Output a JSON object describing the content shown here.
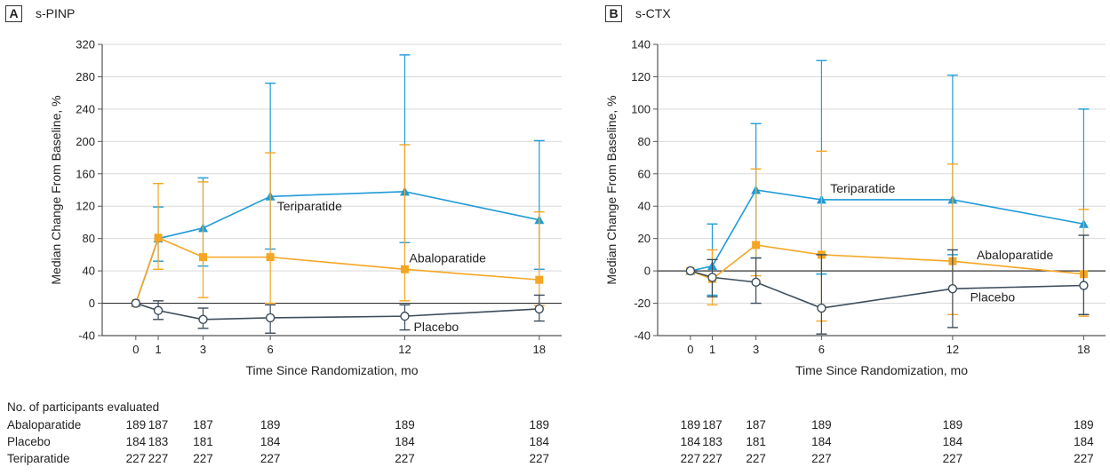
{
  "colors": {
    "abaloparatide": "#f5a623",
    "teriparatide": "#1f9bd7",
    "placebo": "#3d4d5c",
    "axis": "#555555",
    "grid": "#d9d9d9"
  },
  "chart_data": [
    {
      "type": "line",
      "panel_letter": "A",
      "title": "s-PINP",
      "xlabel": "Time Since Randomization, mo",
      "ylabel": "Median Change From Baseline, %",
      "xlim": [
        -1.5,
        19
      ],
      "ylim": [
        -40,
        320
      ],
      "x_ticks": [
        0,
        1,
        3,
        6,
        12,
        18
      ],
      "y_ticks": [
        -40,
        0,
        40,
        80,
        120,
        160,
        200,
        240,
        280,
        320
      ],
      "grid": true,
      "series": [
        {
          "name": "Teriparatide",
          "key": "teriparatide",
          "marker": "triangle",
          "x": [
            0,
            1,
            3,
            6,
            12,
            18
          ],
          "values": [
            0,
            80,
            93,
            132,
            138,
            103
          ],
          "err_low": [
            0,
            52,
            46,
            67,
            75,
            42
          ],
          "err_high": [
            0,
            119,
            155,
            272,
            307,
            201
          ],
          "label_at": [
            6.3,
            120
          ]
        },
        {
          "name": "Abaloparatide",
          "key": "abaloparatide",
          "marker": "square",
          "x": [
            0,
            1,
            3,
            6,
            12,
            18
          ],
          "values": [
            0,
            81,
            57,
            57,
            42,
            29
          ],
          "err_low": [
            0,
            42,
            7,
            0,
            3,
            -3
          ],
          "err_high": [
            0,
            148,
            150,
            186,
            196,
            113
          ],
          "label_at": [
            12.2,
            56
          ]
        },
        {
          "name": "Placebo",
          "key": "placebo",
          "marker": "circle",
          "x": [
            0,
            1,
            3,
            6,
            12,
            18
          ],
          "values": [
            0,
            -9,
            -20,
            -18,
            -16,
            -7
          ],
          "err_low": [
            0,
            -20,
            -31,
            -37,
            -33,
            -22
          ],
          "err_high": [
            0,
            3,
            -6,
            -2,
            -2,
            10
          ],
          "label_at": [
            12.4,
            -29
          ]
        }
      ]
    },
    {
      "type": "line",
      "panel_letter": "B",
      "title": "s-CTX",
      "xlabel": "Time Since Randomization, mo",
      "ylabel": "Median Change From Baseline, %",
      "xlim": [
        -1.5,
        19
      ],
      "ylim": [
        -40,
        140
      ],
      "x_ticks": [
        0,
        1,
        3,
        6,
        12,
        18
      ],
      "y_ticks": [
        -40,
        -20,
        0,
        20,
        40,
        60,
        80,
        100,
        120,
        140
      ],
      "grid": true,
      "series": [
        {
          "name": "Teriparatide",
          "key": "teriparatide",
          "marker": "triangle",
          "x": [
            0,
            1,
            3,
            6,
            12,
            18
          ],
          "values": [
            0,
            3,
            50,
            44,
            44,
            29
          ],
          "err_low": [
            0,
            -15,
            8,
            -2,
            10,
            -27
          ],
          "err_high": [
            0,
            29,
            91,
            130,
            121,
            100
          ],
          "label_at": [
            6.4,
            51
          ]
        },
        {
          "name": "Abaloparatide",
          "key": "abaloparatide",
          "marker": "square",
          "x": [
            0,
            1,
            3,
            6,
            12,
            18
          ],
          "values": [
            0,
            -5,
            16,
            10,
            6,
            -2
          ],
          "err_low": [
            0,
            -21,
            -3,
            -31,
            -27,
            -28
          ],
          "err_high": [
            0,
            13,
            63,
            74,
            66,
            38
          ],
          "label_at": [
            13.1,
            10
          ]
        },
        {
          "name": "Placebo",
          "key": "placebo",
          "marker": "circle",
          "x": [
            0,
            1,
            3,
            6,
            12,
            18
          ],
          "values": [
            0,
            -4,
            -7,
            -23,
            -11,
            -9
          ],
          "err_low": [
            0,
            -16,
            -20,
            -39,
            -35,
            -27
          ],
          "err_high": [
            0,
            7,
            8,
            10,
            13,
            22
          ],
          "label_at": [
            12.8,
            -16
          ]
        }
      ]
    }
  ],
  "participants_table": {
    "heading": "No. of participants evaluated",
    "x": [
      0,
      1,
      3,
      6,
      12,
      18
    ],
    "rows": [
      {
        "label": "Abaloparatide",
        "counts": [
          "189",
          "187",
          "187",
          "189",
          "189",
          "189"
        ]
      },
      {
        "label": "Placebo",
        "counts": [
          "184",
          "183",
          "181",
          "184",
          "184",
          "184"
        ]
      },
      {
        "label": "Teriparatide",
        "counts": [
          "227",
          "227",
          "227",
          "227",
          "227",
          "227"
        ]
      }
    ]
  }
}
